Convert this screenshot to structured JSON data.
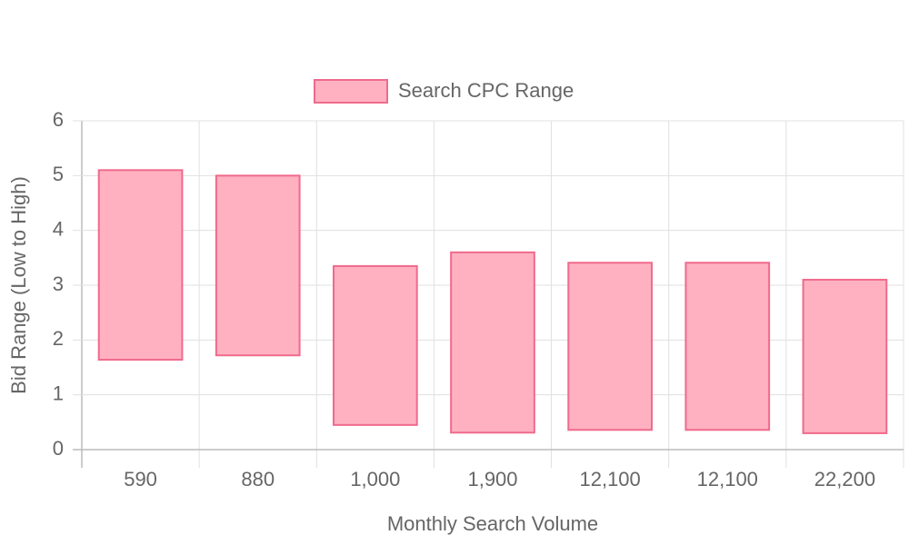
{
  "chart_data": {
    "type": "floating-bar",
    "x_label": "Monthly Search Volume",
    "y_label": "Bid Range (Low to High)",
    "categories": [
      "590",
      "880",
      "1,000",
      "1,900",
      "12,100",
      "12,100",
      "22,200"
    ],
    "series": [
      {
        "name": "Search CPC Range",
        "color": "#f06a8c",
        "fill": "#ffb1c1",
        "low": [
          1.64,
          1.72,
          0.45,
          0.31,
          0.36,
          0.36,
          0.3
        ],
        "high": [
          5.1,
          5.0,
          3.35,
          3.6,
          3.41,
          3.41,
          3.1
        ]
      }
    ],
    "ylim": [
      0,
      6
    ],
    "yticks": [
      0,
      1,
      2,
      3,
      4,
      5,
      6
    ],
    "grid": true,
    "legend": "top"
  }
}
